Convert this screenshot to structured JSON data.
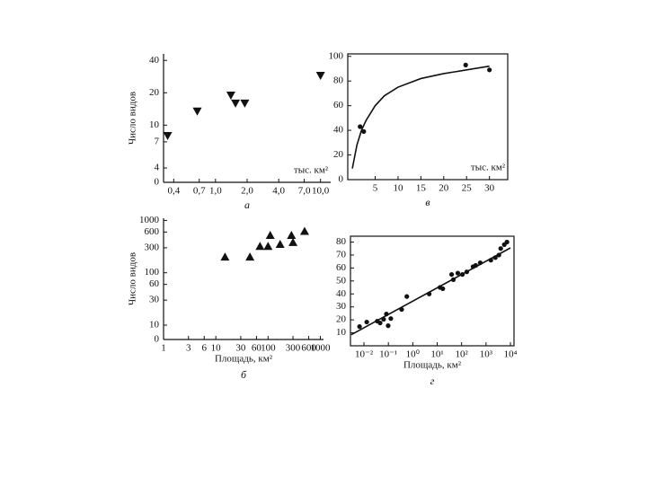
{
  "chart_data": [
    {
      "type": "scatter",
      "xscale": "log",
      "yscale": "log",
      "box": false,
      "color": "#111111",
      "xlim": [
        0.32,
        12.5
      ],
      "ylim": [
        0,
        46
      ],
      "xticks": [
        {
          "value": 0.4,
          "label": "0,4"
        },
        {
          "value": 0.7,
          "label": "0,7"
        },
        {
          "value": 1,
          "label": "1,0"
        },
        {
          "value": 2,
          "label": "2,0"
        },
        {
          "value": 4,
          "label": "4,0"
        },
        {
          "value": 7,
          "label": "7,0"
        },
        {
          "value": 10,
          "label": "10,0"
        }
      ],
      "yticks": [
        0,
        4,
        7,
        10,
        20,
        40
      ],
      "ylabel": "Число видов",
      "annotation": "тыс. км²",
      "caption": "а",
      "series": [
        {
          "marker": "triangle-down",
          "x": [
            0.35,
            0.67,
            1.4,
            1.55,
            1.9,
            10
          ],
          "values": [
            8,
            13.5,
            19,
            16,
            16,
            29
          ]
        }
      ]
    },
    {
      "type": "scatter",
      "xscale": "log",
      "yscale": "log",
      "box": false,
      "color": "#111111",
      "xlim": [
        1,
        1150
      ],
      "ylim": [
        0,
        1100
      ],
      "xticks": [
        1,
        3,
        6,
        10,
        30,
        60,
        100,
        300,
        600,
        1000
      ],
      "yticks": [
        0,
        10,
        30,
        60,
        100,
        300,
        600,
        1000
      ],
      "ylabel": "Число видов",
      "xlabel": "Площадь, км²",
      "caption": "б",
      "series": [
        {
          "marker": "triangle",
          "x": [
            15,
            45,
            70,
            100,
            110,
            170,
            280,
            300,
            500
          ],
          "values": [
            200,
            200,
            320,
            320,
            520,
            350,
            520,
            380,
            620
          ]
        }
      ]
    },
    {
      "type": "scatter",
      "xscale": "linear",
      "yscale": "linear",
      "box": true,
      "color": "#111111",
      "xlim": [
        -1,
        34
      ],
      "ylim": [
        0,
        102
      ],
      "xticks": [
        5,
        10,
        15,
        20,
        25,
        30
      ],
      "yticks": [
        0,
        20,
        40,
        60,
        80,
        100
      ],
      "annotation": "тыс. км²",
      "caption": "в",
      "series": [
        {
          "marker": "circle",
          "x": [
            1.7,
            2.5,
            24.8,
            30
          ],
          "values": [
            43,
            39,
            93,
            89
          ]
        },
        {
          "marker": "line",
          "x": [
            0,
            1,
            2,
            3,
            5,
            7,
            10,
            15,
            20,
            25,
            30
          ],
          "values": [
            9,
            28,
            40,
            48,
            60,
            68,
            75,
            82,
            86,
            89,
            92
          ]
        }
      ]
    },
    {
      "type": "scatter",
      "xscale": "log",
      "yscale": "linear",
      "box": true,
      "color": "#111111",
      "xlim": [
        0.0028,
        14000
      ],
      "ylim": [
        0,
        84.5
      ],
      "xticks": [
        {
          "value": 0.01,
          "label": "10⁻²"
        },
        {
          "value": 0.1,
          "label": "10⁻¹"
        },
        {
          "value": 1,
          "label": "10⁰"
        },
        {
          "value": 10,
          "label": "10¹"
        },
        {
          "value": 100,
          "label": "10²"
        },
        {
          "value": 1000,
          "label": "10³"
        },
        {
          "value": 10000,
          "label": "10⁴"
        }
      ],
      "yticks": [
        10,
        20,
        30,
        40,
        50,
        60,
        70,
        80
      ],
      "xlabel": "Площадь, км²",
      "caption": "г",
      "series": [
        {
          "marker": "circle",
          "x": [
            0.0066,
            0.013,
            0.035,
            0.046,
            0.064,
            0.083,
            0.098,
            0.126,
            0.35,
            0.57,
            4.7,
            13,
            17,
            39,
            46,
            70,
            108,
            163,
            294,
            378,
            580,
            1580,
            2400,
            3380,
            4000,
            5600,
            7200
          ],
          "values": [
            14.8,
            18.3,
            19,
            17.6,
            20.4,
            24.5,
            15.5,
            21,
            28,
            38,
            40,
            45,
            44,
            55,
            51,
            56,
            55,
            57,
            61,
            62,
            64,
            66,
            68,
            70,
            75,
            78,
            80
          ]
        },
        {
          "marker": "line",
          "x": [
            0.003,
            10000
          ],
          "values": [
            8.5,
            75.5
          ]
        }
      ]
    }
  ]
}
